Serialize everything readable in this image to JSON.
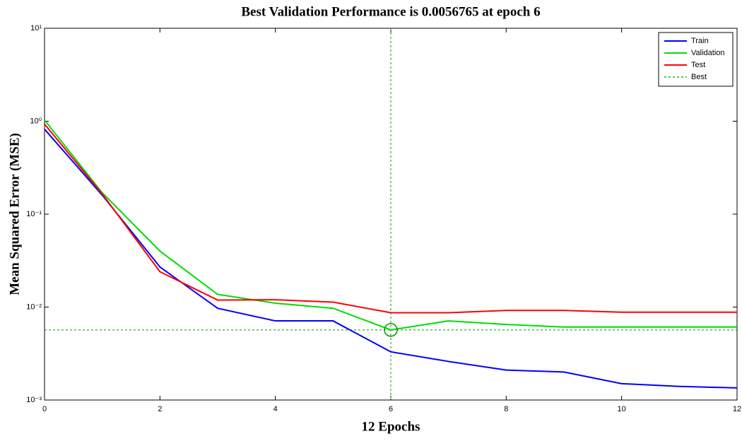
{
  "chart_data": {
    "type": "line",
    "title": "Best Validation Performance is 0.0056765 at epoch 6",
    "x_label": "12 Epochs",
    "y_label": "Mean Squared Error (MSE)",
    "x": [
      0,
      1,
      2,
      3,
      4,
      5,
      6,
      7,
      8,
      9,
      10,
      11,
      12
    ],
    "series": [
      {
        "name": "Train",
        "color": "#0000ff",
        "values": [
          0.82,
          0.16,
          0.027,
          0.0097,
          0.0071,
          0.0071,
          0.0033,
          0.0026,
          0.0021,
          0.002,
          0.0015,
          0.0014,
          0.00135
        ]
      },
      {
        "name": "Validation",
        "color": "#00dd00",
        "values": [
          1.03,
          0.17,
          0.04,
          0.0137,
          0.011,
          0.0097,
          0.0056765,
          0.0071,
          0.0065,
          0.0061,
          0.0061,
          0.0061,
          0.0061
        ]
      },
      {
        "name": "Test",
        "color": "#ff0000",
        "values": [
          0.93,
          0.165,
          0.024,
          0.0119,
          0.012,
          0.0113,
          0.0087,
          0.0087,
          0.0092,
          0.0092,
          0.0088,
          0.0088,
          0.0088
        ]
      }
    ],
    "best": {
      "name": "Best",
      "color": "#009900",
      "x": 6,
      "y": 0.0056765
    },
    "xlim": [
      0,
      12
    ],
    "xticks": [
      0,
      2,
      4,
      6,
      8,
      10,
      12
    ],
    "ylim": [
      0.001,
      10
    ],
    "yscale": "log",
    "yticks": [
      {
        "value": 0.001,
        "label": "10⁻³"
      },
      {
        "value": 0.01,
        "label": "10⁻²"
      },
      {
        "value": 0.1,
        "label": "10⁻¹"
      },
      {
        "value": 1,
        "label": "10⁰"
      },
      {
        "value": 10,
        "label": "10¹"
      }
    ],
    "grid": false,
    "legend": "upper right"
  }
}
